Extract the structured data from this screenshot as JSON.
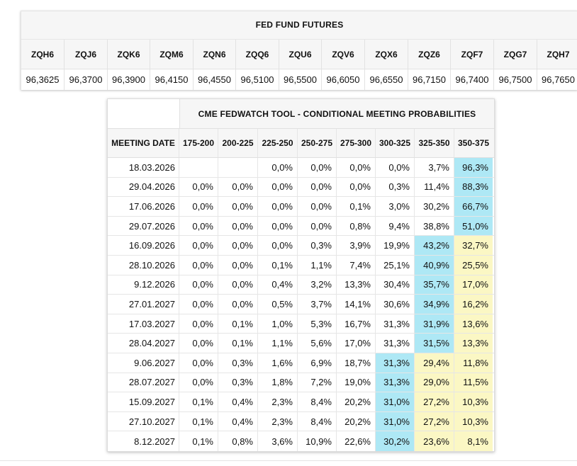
{
  "futures": {
    "title": "FED FUND FUTURES",
    "contracts": [
      "ZQH6",
      "ZQJ6",
      "ZQK6",
      "ZQM6",
      "ZQN6",
      "ZQQ6",
      "ZQU6",
      "ZQV6",
      "ZQX6",
      "ZQZ6",
      "ZQF7",
      "ZQG7",
      "ZQH7"
    ],
    "prices": [
      "96,3625",
      "96,3700",
      "96,3900",
      "96,4150",
      "96,4550",
      "96,5100",
      "96,5500",
      "96,6050",
      "96,6550",
      "96,7150",
      "96,7400",
      "96,7500",
      "96,7650"
    ]
  },
  "fedwatch": {
    "title": "CME FEDWATCH TOOL - CONDITIONAL MEETING PROBABILITIES",
    "date_header": "MEETING DATE",
    "ranges": [
      "175-200",
      "200-225",
      "225-250",
      "250-275",
      "275-300",
      "300-325",
      "325-350",
      "350-375"
    ],
    "highlight_colors": {
      "blue": "#aee8f5",
      "yellow": "#fbf7c4"
    },
    "rows": [
      {
        "date": "18.03.2026",
        "values": [
          "",
          "",
          "0,0%",
          "0,0%",
          "0,0%",
          "0,0%",
          "3,7%",
          "96,3%"
        ],
        "highlights": [
          "",
          "",
          "",
          "",
          "",
          "",
          "",
          "blue"
        ]
      },
      {
        "date": "29.04.2026",
        "values": [
          "0,0%",
          "0,0%",
          "0,0%",
          "0,0%",
          "0,0%",
          "0,3%",
          "11,4%",
          "88,3%"
        ],
        "highlights": [
          "",
          "",
          "",
          "",
          "",
          "",
          "",
          "blue"
        ]
      },
      {
        "date": "17.06.2026",
        "values": [
          "0,0%",
          "0,0%",
          "0,0%",
          "0,0%",
          "0,1%",
          "3,0%",
          "30,2%",
          "66,7%"
        ],
        "highlights": [
          "",
          "",
          "",
          "",
          "",
          "",
          "",
          "blue"
        ]
      },
      {
        "date": "29.07.2026",
        "values": [
          "0,0%",
          "0,0%",
          "0,0%",
          "0,0%",
          "0,8%",
          "9,4%",
          "38,8%",
          "51,0%"
        ],
        "highlights": [
          "",
          "",
          "",
          "",
          "",
          "",
          "",
          "blue"
        ]
      },
      {
        "date": "16.09.2026",
        "values": [
          "0,0%",
          "0,0%",
          "0,0%",
          "0,3%",
          "3,9%",
          "19,9%",
          "43,2%",
          "32,7%"
        ],
        "highlights": [
          "",
          "",
          "",
          "",
          "",
          "",
          "blue",
          "yellow"
        ]
      },
      {
        "date": "28.10.2026",
        "values": [
          "0,0%",
          "0,0%",
          "0,1%",
          "1,1%",
          "7,4%",
          "25,1%",
          "40,9%",
          "25,5%"
        ],
        "highlights": [
          "",
          "",
          "",
          "",
          "",
          "",
          "blue",
          "yellow"
        ]
      },
      {
        "date": "9.12.2026",
        "values": [
          "0,0%",
          "0,0%",
          "0,4%",
          "3,2%",
          "13,3%",
          "30,4%",
          "35,7%",
          "17,0%"
        ],
        "highlights": [
          "",
          "",
          "",
          "",
          "",
          "",
          "blue",
          "yellow"
        ]
      },
      {
        "date": "27.01.2027",
        "values": [
          "0,0%",
          "0,0%",
          "0,5%",
          "3,7%",
          "14,1%",
          "30,6%",
          "34,9%",
          "16,2%"
        ],
        "highlights": [
          "",
          "",
          "",
          "",
          "",
          "",
          "blue",
          "yellow"
        ]
      },
      {
        "date": "17.03.2027",
        "values": [
          "0,0%",
          "0,1%",
          "1,0%",
          "5,3%",
          "16,7%",
          "31,3%",
          "31,9%",
          "13,6%"
        ],
        "highlights": [
          "",
          "",
          "",
          "",
          "",
          "",
          "blue",
          "yellow"
        ]
      },
      {
        "date": "28.04.2027",
        "values": [
          "0,0%",
          "0,1%",
          "1,1%",
          "5,6%",
          "17,0%",
          "31,3%",
          "31,5%",
          "13,3%"
        ],
        "highlights": [
          "",
          "",
          "",
          "",
          "",
          "",
          "blue",
          "yellow"
        ]
      },
      {
        "date": "9.06.2027",
        "values": [
          "0,0%",
          "0,3%",
          "1,6%",
          "6,9%",
          "18,7%",
          "31,3%",
          "29,4%",
          "11,8%"
        ],
        "highlights": [
          "",
          "",
          "",
          "",
          "",
          "blue",
          "yellow",
          "yellow"
        ]
      },
      {
        "date": "28.07.2027",
        "values": [
          "0,0%",
          "0,3%",
          "1,8%",
          "7,2%",
          "19,0%",
          "31,3%",
          "29,0%",
          "11,5%"
        ],
        "highlights": [
          "",
          "",
          "",
          "",
          "",
          "blue",
          "yellow",
          "yellow"
        ]
      },
      {
        "date": "15.09.2027",
        "values": [
          "0,1%",
          "0,4%",
          "2,3%",
          "8,4%",
          "20,2%",
          "31,0%",
          "27,2%",
          "10,3%"
        ],
        "highlights": [
          "",
          "",
          "",
          "",
          "",
          "blue",
          "yellow",
          "yellow"
        ]
      },
      {
        "date": "27.10.2027",
        "values": [
          "0,1%",
          "0,4%",
          "2,3%",
          "8,4%",
          "20,2%",
          "31,0%",
          "27,2%",
          "10,3%"
        ],
        "highlights": [
          "",
          "",
          "",
          "",
          "",
          "blue",
          "yellow",
          "yellow"
        ]
      },
      {
        "date": "8.12.2027",
        "values": [
          "0,1%",
          "0,8%",
          "3,6%",
          "10,9%",
          "22,6%",
          "30,2%",
          "23,6%",
          "8,1%"
        ],
        "highlights": [
          "",
          "",
          "",
          "",
          "",
          "blue",
          "yellow",
          "yellow"
        ]
      }
    ]
  }
}
